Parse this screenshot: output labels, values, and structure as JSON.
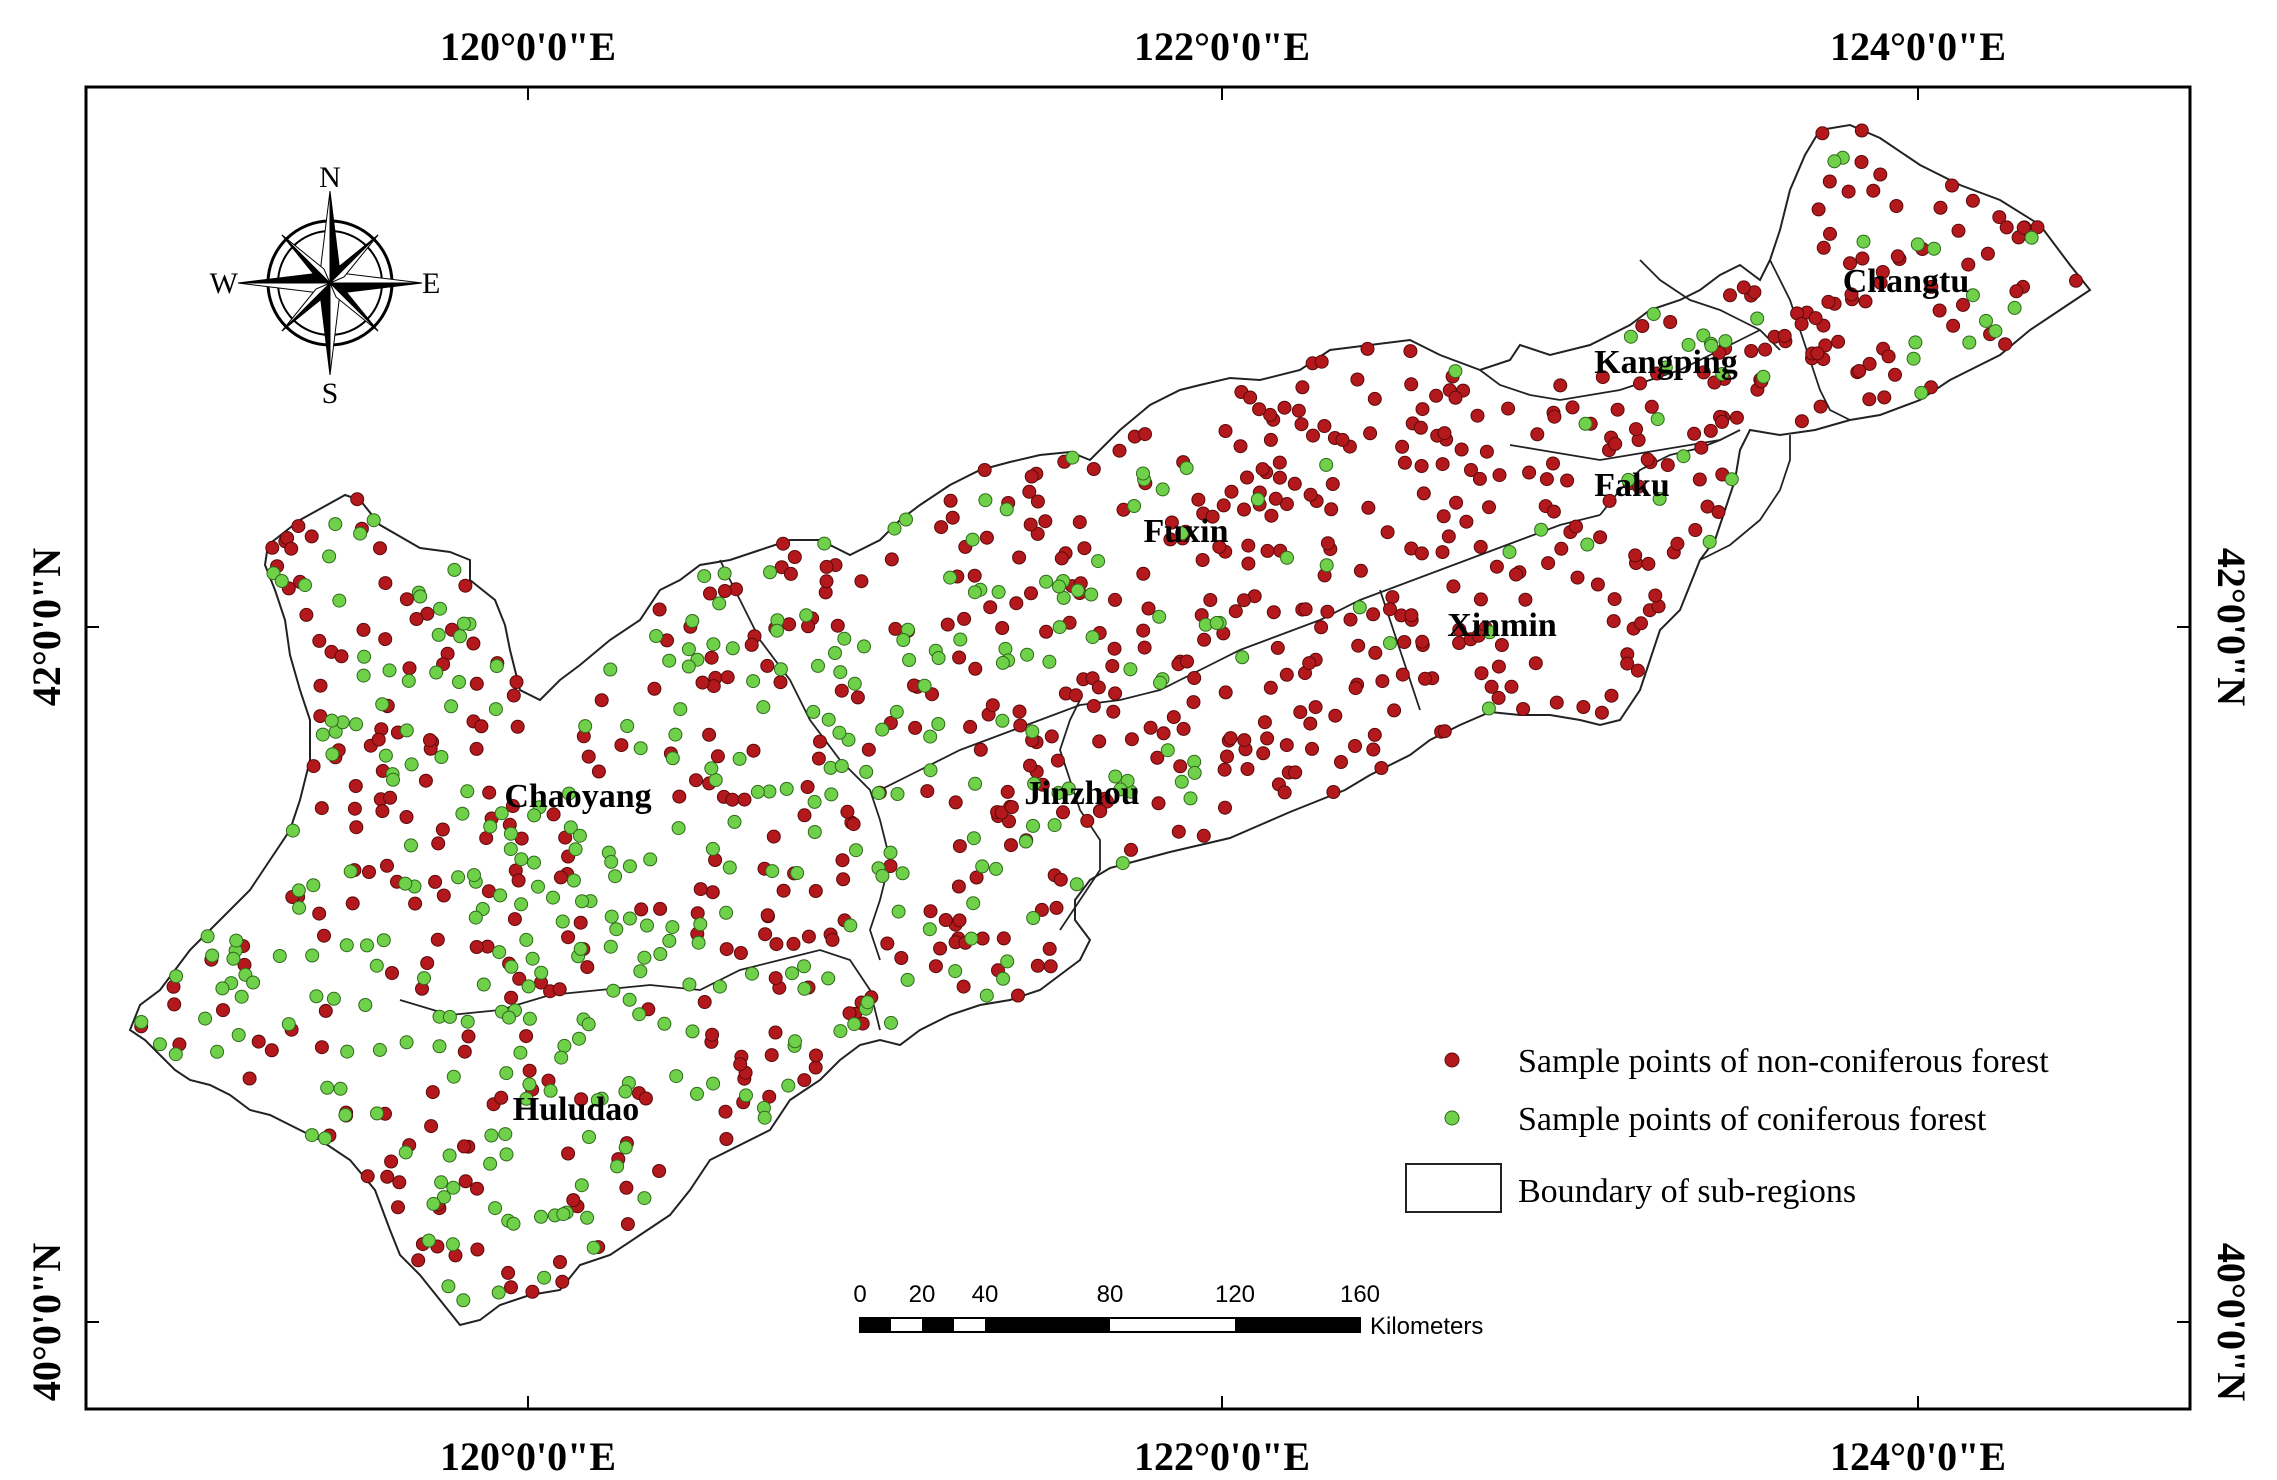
{
  "map": {
    "graticule": {
      "longitude_labels": [
        "120°0'0\"E",
        "122°0'0\"E",
        "124°0'0\"E"
      ],
      "latitude_labels": [
        "42°0'0\"N",
        "40°0'0\"N"
      ]
    },
    "compass": {
      "north": "N",
      "south": "S",
      "east": "E",
      "west": "W"
    },
    "regions": [
      "Changtu",
      "Kangping",
      "Faku",
      "Fuxin",
      "Xinmin",
      "Chaoyang",
      "Jinzhou",
      "Huludao"
    ],
    "legend": {
      "non_coniferous": "Sample points of non-coniferous forest",
      "coniferous": "Sample points of coniferous forest",
      "boundary": "Boundary of sub-regions"
    },
    "scale_bar": {
      "ticks": [
        "0",
        "20",
        "40",
        "80",
        "120",
        "160"
      ],
      "unit": "Kilometers"
    },
    "colors": {
      "non_coniferous": "#b3181c",
      "coniferous": "#6fd04a",
      "boundary": "#222222",
      "frame": "#000000"
    }
  }
}
